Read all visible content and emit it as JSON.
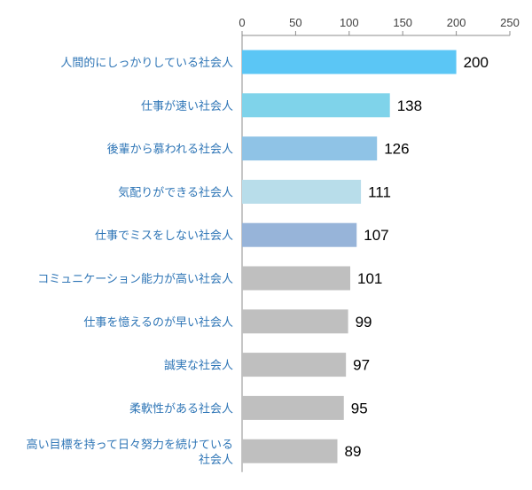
{
  "chart_data": {
    "type": "bar",
    "orientation": "horizontal",
    "categories": [
      "人間的にしっかりしている社会人",
      "仕事が速い社会人",
      "後輩から慕われる社会人",
      "気配りができる社会人",
      "仕事でミスをしない社会人",
      "コミュニケーション能力が高い社会人",
      "仕事を憶えるのが早い社会人",
      "誠実な社会人",
      "柔軟性がある社会人",
      "高い目標を持って日々努力を続けている社会人"
    ],
    "values": [
      200,
      138,
      126,
      111,
      107,
      101,
      99,
      97,
      95,
      89
    ],
    "value_labels": [
      "200",
      "138",
      "126",
      "111",
      "107",
      "101",
      "99",
      "97",
      "95",
      "89"
    ],
    "bar_colors": [
      "#5BC6F5",
      "#7FD3EA",
      "#8FC3E6",
      "#B8DDEA",
      "#97B4D9",
      "#BFBFBF",
      "#BFBFBF",
      "#BFBFBF",
      "#BFBFBF",
      "#BFBFBF"
    ],
    "xlim": [
      0,
      250
    ],
    "xticks": [
      0,
      50,
      100,
      150,
      200,
      250
    ],
    "xtick_labels": [
      "0",
      "50",
      "100",
      "150",
      "200",
      "250"
    ],
    "xaxis_position": "top",
    "label_color": "#2E75B6",
    "grid": false,
    "title": "",
    "xlabel": "",
    "ylabel": ""
  }
}
